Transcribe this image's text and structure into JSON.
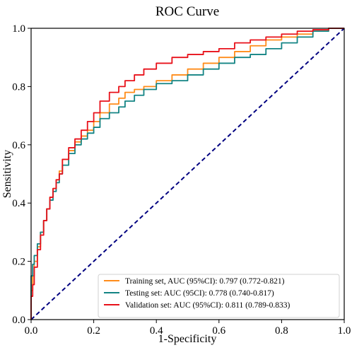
{
  "chart_data": {
    "type": "line",
    "title": "ROC Curve",
    "xlabel": "1-Specificity",
    "ylabel": "Sensitivity",
    "xlim": [
      0.0,
      1.0
    ],
    "ylim": [
      0.0,
      1.0
    ],
    "xticks": [
      "0.0",
      "0.2",
      "0.4",
      "0.6",
      "0.8",
      "1.0"
    ],
    "yticks": [
      "0.0",
      "0.2",
      "0.4",
      "0.6",
      "0.8",
      "1.0"
    ],
    "grid": false,
    "legend_position": "lower-right",
    "diagonal_reference": {
      "color": "#000080",
      "style": "dashed",
      "points": [
        [
          0,
          0
        ],
        [
          1,
          1
        ]
      ]
    },
    "series": [
      {
        "name": "Training set, AUC (95%CI): 0.797 (0.772-0.821)",
        "color": "#ff8c1a",
        "points": [
          [
            0,
            0
          ],
          [
            0,
            0.06
          ],
          [
            0.005,
            0.1
          ],
          [
            0.01,
            0.15
          ],
          [
            0.02,
            0.2
          ],
          [
            0.03,
            0.25
          ],
          [
            0.04,
            0.3
          ],
          [
            0.05,
            0.34
          ],
          [
            0.06,
            0.38
          ],
          [
            0.07,
            0.42
          ],
          [
            0.08,
            0.45
          ],
          [
            0.09,
            0.48
          ],
          [
            0.1,
            0.51
          ],
          [
            0.12,
            0.55
          ],
          [
            0.14,
            0.58
          ],
          [
            0.16,
            0.61
          ],
          [
            0.18,
            0.63
          ],
          [
            0.2,
            0.65
          ],
          [
            0.22,
            0.68
          ],
          [
            0.25,
            0.71
          ],
          [
            0.28,
            0.74
          ],
          [
            0.3,
            0.76
          ],
          [
            0.33,
            0.78
          ],
          [
            0.36,
            0.79
          ],
          [
            0.4,
            0.8
          ],
          [
            0.45,
            0.82
          ],
          [
            0.5,
            0.84
          ],
          [
            0.55,
            0.86
          ],
          [
            0.6,
            0.88
          ],
          [
            0.65,
            0.9
          ],
          [
            0.7,
            0.92
          ],
          [
            0.75,
            0.94
          ],
          [
            0.8,
            0.96
          ],
          [
            0.85,
            0.97
          ],
          [
            0.9,
            0.98
          ],
          [
            0.95,
            0.99
          ],
          [
            1.0,
            1.0
          ]
        ]
      },
      {
        "name": "Testing set: AUC (95CI): 0.778 (0.740-0.817)",
        "color": "#138484",
        "points": [
          [
            0,
            0
          ],
          [
            0,
            0.1
          ],
          [
            0.005,
            0.15
          ],
          [
            0.01,
            0.19
          ],
          [
            0.02,
            0.22
          ],
          [
            0.03,
            0.26
          ],
          [
            0.04,
            0.3
          ],
          [
            0.05,
            0.34
          ],
          [
            0.06,
            0.38
          ],
          [
            0.07,
            0.41
          ],
          [
            0.08,
            0.44
          ],
          [
            0.09,
            0.47
          ],
          [
            0.1,
            0.5
          ],
          [
            0.12,
            0.53
          ],
          [
            0.14,
            0.57
          ],
          [
            0.16,
            0.6
          ],
          [
            0.18,
            0.62
          ],
          [
            0.2,
            0.64
          ],
          [
            0.22,
            0.66
          ],
          [
            0.25,
            0.69
          ],
          [
            0.28,
            0.71
          ],
          [
            0.3,
            0.73
          ],
          [
            0.33,
            0.75
          ],
          [
            0.36,
            0.77
          ],
          [
            0.4,
            0.79
          ],
          [
            0.45,
            0.81
          ],
          [
            0.5,
            0.82
          ],
          [
            0.55,
            0.84
          ],
          [
            0.6,
            0.86
          ],
          [
            0.65,
            0.88
          ],
          [
            0.7,
            0.9
          ],
          [
            0.75,
            0.91
          ],
          [
            0.8,
            0.93
          ],
          [
            0.85,
            0.95
          ],
          [
            0.9,
            0.97
          ],
          [
            0.95,
            0.99
          ],
          [
            1.0,
            1.0
          ]
        ]
      },
      {
        "name": "Validation set: AUC (95%CI): 0.811 (0.789-0.833)",
        "color": "#e8111a",
        "points": [
          [
            0,
            0
          ],
          [
            0,
            0.04
          ],
          [
            0.005,
            0.08
          ],
          [
            0.01,
            0.12
          ],
          [
            0.02,
            0.18
          ],
          [
            0.03,
            0.24
          ],
          [
            0.04,
            0.29
          ],
          [
            0.05,
            0.34
          ],
          [
            0.06,
            0.38
          ],
          [
            0.07,
            0.42
          ],
          [
            0.08,
            0.45
          ],
          [
            0.09,
            0.48
          ],
          [
            0.1,
            0.5
          ],
          [
            0.12,
            0.55
          ],
          [
            0.14,
            0.59
          ],
          [
            0.16,
            0.62
          ],
          [
            0.18,
            0.65
          ],
          [
            0.2,
            0.68
          ],
          [
            0.22,
            0.71
          ],
          [
            0.25,
            0.75
          ],
          [
            0.28,
            0.78
          ],
          [
            0.3,
            0.8
          ],
          [
            0.33,
            0.82
          ],
          [
            0.36,
            0.84
          ],
          [
            0.4,
            0.86
          ],
          [
            0.45,
            0.88
          ],
          [
            0.5,
            0.9
          ],
          [
            0.55,
            0.91
          ],
          [
            0.6,
            0.92
          ],
          [
            0.65,
            0.93
          ],
          [
            0.7,
            0.95
          ],
          [
            0.75,
            0.96
          ],
          [
            0.8,
            0.97
          ],
          [
            0.85,
            0.98
          ],
          [
            0.9,
            0.99
          ],
          [
            0.95,
            0.995
          ],
          [
            1.0,
            1.0
          ]
        ]
      }
    ]
  }
}
